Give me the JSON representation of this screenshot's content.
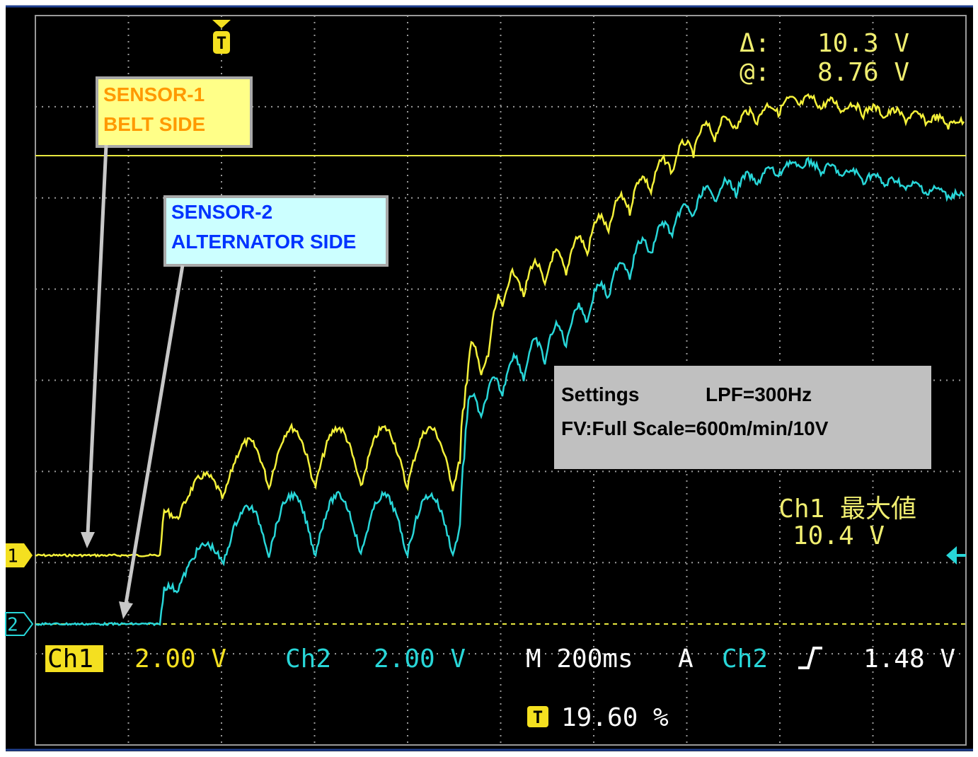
{
  "cursor_readout": {
    "delta_label": "Δ:",
    "delta_value": "10.3 V",
    "at_label": "@:",
    "at_value": "8.76 V"
  },
  "trigger_marker": "T",
  "channel_markers": [
    "1",
    "2"
  ],
  "sensor_1_note": {
    "line_1": "SENSOR-1",
    "line_2": "BELT SIDE"
  },
  "sensor_2_note": {
    "line_1": "SENSOR-2",
    "line_2": "ALTERNATOR SIDE"
  },
  "settings_note": {
    "line_1_label": "Settings",
    "line_1_value": "LPF=300Hz",
    "line_2": "FV:Full Scale=600m/min/10V"
  },
  "max_readout": {
    "label": "Ch1 最大値",
    "value": "10.4 V"
  },
  "status_bar": {
    "ch1_label": "Ch1",
    "ch1_scale": "2.00 V",
    "ch2_label": "Ch2",
    "ch2_scale": "2.00 V",
    "timebase": "M 200ms",
    "trigger_mode": "A",
    "trigger_source": "Ch2",
    "trigger_level": "1.48 V",
    "position_icon": "T",
    "position": "19.60 %"
  }
}
